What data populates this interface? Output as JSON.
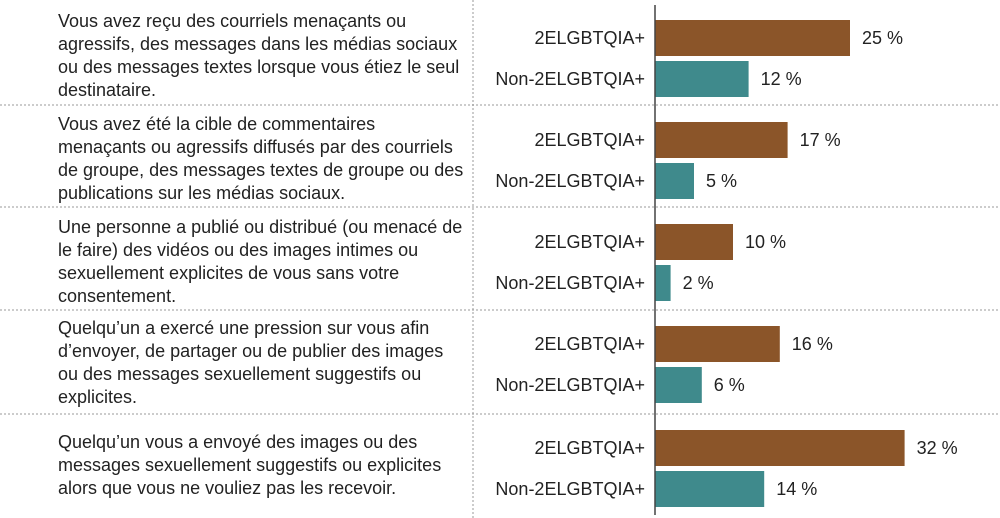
{
  "chart_data": {
    "type": "bar",
    "orientation": "horizontal",
    "title": "",
    "xlabel": "",
    "ylabel": "",
    "value_suffix": " %",
    "xlim": [
      0,
      35
    ],
    "grid": false,
    "legend": "none",
    "categories": [
      "Vous avez reçu des courriels menaçants ou agressifs, des messages dans les médias sociaux ou des messages textes lorsque vous étiez le seul destinataire.",
      "Vous avez été la cible de commentaires menaçants ou agressifs diffusés par des courriels de groupe, des messages textes de groupe ou des publications sur les médias sociaux.",
      "Une personne a publié ou distribué (ou menacé de le faire) des vidéos ou des images intimes ou sexuellement explicites de vous sans votre consentement.",
      "Quelqu’un a exercé une pression sur vous afin d’envoyer, de partager ou de publier des images ou des messages sexuellement suggestifs ou explicites.",
      "Quelqu’un vous a envoyé des images ou des messages sexuellement suggestifs ou explicites alors que vous ne vouliez pas les recevoir."
    ],
    "series": [
      {
        "name": "2ELGBTQIA+",
        "color": "#8b5529",
        "values": [
          25,
          17,
          10,
          16,
          32
        ]
      },
      {
        "name": "Non-2ELGBTQIA+",
        "color": "#3f8a8c",
        "values": [
          12,
          5,
          2,
          6,
          14
        ]
      }
    ]
  },
  "colors": {
    "axis": "#444444",
    "separator": "#9a9a9a"
  }
}
